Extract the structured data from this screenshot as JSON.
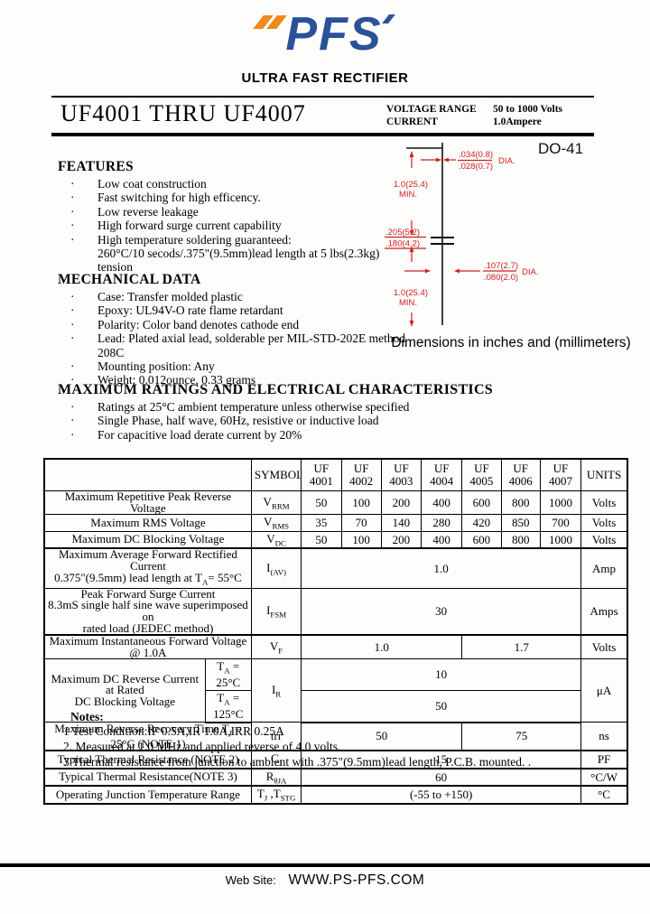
{
  "colors": {
    "logo_blue": "#2b5198",
    "logo_orange": "#f08a1e",
    "dimension_red": "#d02020"
  },
  "brand": {
    "logo_text": "PFS",
    "tagline": "ULTRA FAST RECTIFIER"
  },
  "title_block": {
    "part_range": "UF4001 THRU UF4007",
    "specs": [
      {
        "label": "VOLTAGE RANGE",
        "value": "50 to 1000 Volts"
      },
      {
        "label": "CURRENT",
        "value": "1.0Ampere"
      }
    ]
  },
  "features": {
    "heading": "FEATURES",
    "items": [
      "Low coat construction",
      "Fast switching for high efficency.",
      "Low reverse leakage",
      "High forward surge current capability",
      "High temperature soldering guaranteed:"
    ],
    "continuation": "260°C/10 secods/.375\"(9.5mm)lead length at 5 lbs(2.3kg) tension"
  },
  "mechanical": {
    "heading": "MECHANICAL DATA",
    "items": [
      "Case: Transfer molded plastic",
      "Epoxy: UL94V-O rate flame retardant",
      "Polarity: Color band denotes cathode end",
      "Lead: Plated axial lead, solderable per MIL-STD-202E method 208C",
      "Mounting position: Any",
      "Weight:  0.012ounce, 0.33 grams"
    ]
  },
  "package": {
    "name": "DO-41",
    "caption": "Dimensions in inches and (millimeters)",
    "lead_dia_max": ".034(0.8)",
    "lead_dia_min": ".028(0.7)",
    "dia_label": "DIA.",
    "lead_len": "1.0(25.4)",
    "min_label": "MIN.",
    "body_len_max": ".205(5.2)",
    "body_len_min": ".180(4.2)",
    "body_dia_max": ".107(2.7)",
    "body_dia_min": ".080(2.0)"
  },
  "ratings": {
    "heading": "MAXIMUM RATINGS AND ELECTRICAL CHARACTERISTICS",
    "items": [
      "Ratings at 25°C ambient temperature unless otherwise specified",
      "Single Phase, half wave, 60Hz, resistive or inductive load",
      "For capacitive load derate current by 20%"
    ]
  },
  "table": {
    "symbols_header": "SYMBOLS",
    "units_header": "UNITS",
    "parts": [
      "UF\n4001",
      "UF\n4002",
      "UF\n4003",
      "UF\n4004",
      "UF\n4005",
      "UF\n4006",
      "UF\n4007"
    ],
    "rows": [
      {
        "desc": "Maximum Repetitive Peak Reverse Voltage",
        "sym": "V~RRM~",
        "vals": [
          "50",
          "100",
          "200",
          "400",
          "600",
          "800",
          "1000"
        ],
        "unit": "Volts"
      },
      {
        "desc": "Maximum RMS Voltage",
        "sym": "V~RMS~",
        "vals": [
          "35",
          "70",
          "140",
          "280",
          "420",
          "850",
          "700"
        ],
        "unit": "Volts"
      },
      {
        "desc": "Maximum DC Blocking Voltage",
        "sym": "V~DC~",
        "vals": [
          "50",
          "100",
          "200",
          "400",
          "600",
          "800",
          "1000"
        ],
        "unit": "Volts",
        "thick": true
      },
      {
        "desc": "Maximum Average Forward Rectified Current\n0.375\"(9.5mm) lead length at T~A~= 55°C",
        "sym": "I~(AV)~",
        "span": "1.0",
        "unit": "Amp"
      },
      {
        "desc": "Peak Forward Surge Current\n8.3mS single half sine wave superimposed on\nrated load (JEDEC method)",
        "sym": "I~FSM~",
        "span": "30",
        "unit": "Amps",
        "thick": true
      },
      {
        "desc": "Maximum Instantaneous Forward Voltage @ 1.0A",
        "sym": "V~F~",
        "split": [
          "1.0",
          "1.7"
        ],
        "unit": "Volts"
      },
      {
        "desc": "Maximum DC Reverse Current at Rated\nDC Blocking Voltage",
        "sym": "I~R~",
        "sub": [
          {
            "cond": "T~A~ = 25°C",
            "val": "10"
          },
          {
            "cond": "T~A~ = 125°C",
            "val": "50"
          }
        ],
        "unit": "μA",
        "thick": true
      },
      {
        "desc": "Maximum Reverse Recovery Time T~J~ = 25°C (NOTE 1)",
        "sym": "trr",
        "split": [
          "50",
          "75"
        ],
        "unit": "ns",
        "thick": true
      },
      {
        "desc": "Typical Thermal Resistance (NOTE 2)",
        "sym": "C~J~",
        "span": "15",
        "unit": "PF",
        "thick": true
      },
      {
        "desc": "Typical Thermal Resistance(NOTE 3)",
        "sym": "R~θJA~",
        "span": "60",
        "unit": "°C/W",
        "thick": true
      },
      {
        "desc": "Operating Junction Temperature Range",
        "sym": "T~J~ ,T~STG~",
        "span": "(-55 to +150)",
        "unit": "°C"
      }
    ]
  },
  "notes": {
    "heading": "Notes:",
    "lines": [
      "1  Test Condition:IF  0.5A,IR  1.0A,IRR  0.25A",
      "2. Measured at 1.0 MHz and applied reverse of  4.0 volts.",
      "3 Thermal resistance from junction to ambient with .375\"(9.5mm)lead length, P.C.B. mounted. ."
    ]
  },
  "footer": {
    "label": "Web Site:",
    "url": "WWW.PS-PFS.COM"
  }
}
